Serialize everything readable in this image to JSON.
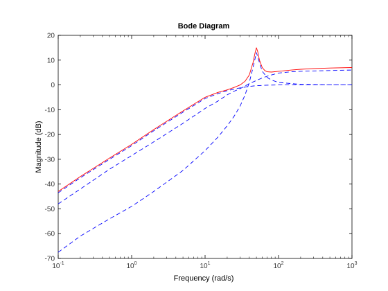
{
  "chart_data": {
    "type": "line",
    "title": "Bode Diagram",
    "xlabel": "Frequency  (rad/s)",
    "ylabel": "Magnitude (dB)",
    "xscale": "log",
    "xlim": [
      0.1,
      1000
    ],
    "ylim": [
      -70,
      20
    ],
    "x_ticks": [
      {
        "base": "10",
        "exp": "-1",
        "value": 0.1
      },
      {
        "base": "10",
        "exp": "0",
        "value": 1
      },
      {
        "base": "10",
        "exp": "1",
        "value": 10
      },
      {
        "base": "10",
        "exp": "2",
        "value": 100
      },
      {
        "base": "10",
        "exp": "3",
        "value": 1000
      }
    ],
    "y_ticks": [
      20,
      10,
      0,
      -10,
      -20,
      -30,
      -40,
      -50,
      -60,
      -70
    ],
    "grid": false,
    "series": [
      {
        "color": "#0000ff",
        "style": "dashed",
        "x": [
          0.1,
          0.2,
          0.5,
          1,
          2,
          5,
          10,
          15,
          20,
          25,
          30,
          40,
          50,
          60,
          70,
          80,
          100,
          150,
          200,
          500,
          1000
        ],
        "y": [
          -48,
          -42,
          -34,
          -28.5,
          -23,
          -15.5,
          -9.5,
          -6.5,
          -4,
          -2.5,
          -1.5,
          0.5,
          1.8,
          2.8,
          3.5,
          4,
          4.8,
          5.3,
          5.5,
          5.8,
          6
        ]
      },
      {
        "color": "#0000ff",
        "style": "dashed",
        "x": [
          0.1,
          0.2,
          0.5,
          1,
          2,
          5,
          10,
          15,
          20,
          25,
          30,
          35,
          40,
          45,
          50,
          55,
          60,
          70,
          80,
          100,
          200,
          500,
          1000
        ],
        "y": [
          -67.5,
          -61,
          -54,
          -49,
          -43,
          -34.5,
          -26.5,
          -21,
          -16.5,
          -12.5,
          -8.5,
          -4,
          1,
          7,
          13,
          9,
          5.5,
          3,
          2,
          1,
          0.2,
          0,
          0
        ]
      },
      {
        "color": "#0000ff",
        "style": "dashed",
        "x": [
          0.1,
          0.2,
          0.5,
          1,
          2,
          5,
          10,
          15,
          20,
          30,
          40,
          50,
          70,
          100,
          200,
          500,
          1000
        ],
        "y": [
          -43.5,
          -37.5,
          -30,
          -24.5,
          -18.5,
          -11,
          -5.5,
          -3.5,
          -2.3,
          -1.2,
          -0.6,
          -0.3,
          -0.1,
          0,
          0,
          0,
          0
        ]
      },
      {
        "color": "#ff0000",
        "style": "solid",
        "x": [
          0.1,
          0.2,
          0.5,
          1,
          2,
          5,
          10,
          15,
          20,
          25,
          30,
          35,
          40,
          45,
          48,
          50,
          52,
          55,
          60,
          65,
          70,
          80,
          100,
          150,
          200,
          300,
          500,
          1000
        ],
        "y": [
          -43,
          -37,
          -29.5,
          -24,
          -18,
          -10.5,
          -5,
          -3,
          -2,
          -1,
          0,
          1.5,
          4,
          9,
          13,
          15,
          13.5,
          10,
          7,
          5.8,
          5.3,
          5.2,
          5.5,
          6,
          6.3,
          6.6,
          6.8,
          7
        ]
      }
    ]
  }
}
